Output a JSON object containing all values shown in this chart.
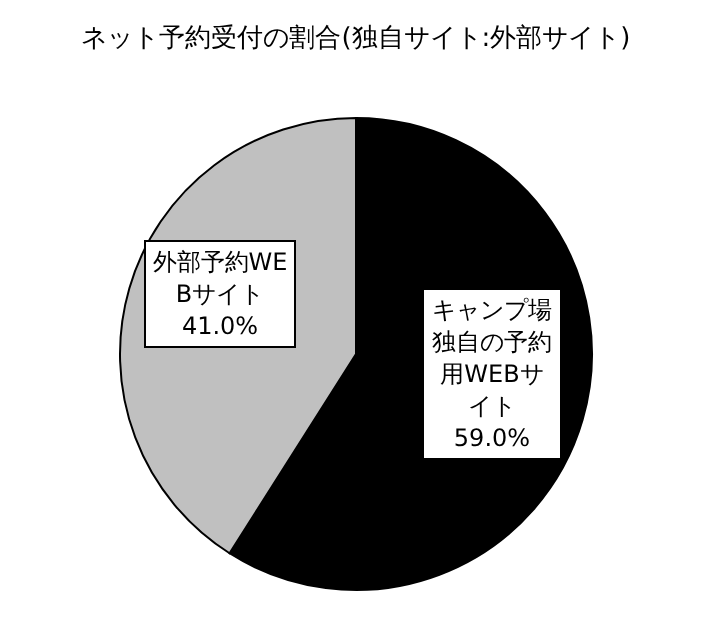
{
  "chart_data": {
    "type": "pie",
    "title": "ネット予約受付の割合(独自サイト:外部サイト)",
    "categories": [
      "キャンプ場独自の予約用WEBサイト",
      "外部予約WEBサイト"
    ],
    "values": [
      59.0,
      41.0
    ],
    "colors": [
      "#000000",
      "#c0c0c0"
    ],
    "value_labels": [
      "59.0%",
      "41.0%"
    ]
  }
}
